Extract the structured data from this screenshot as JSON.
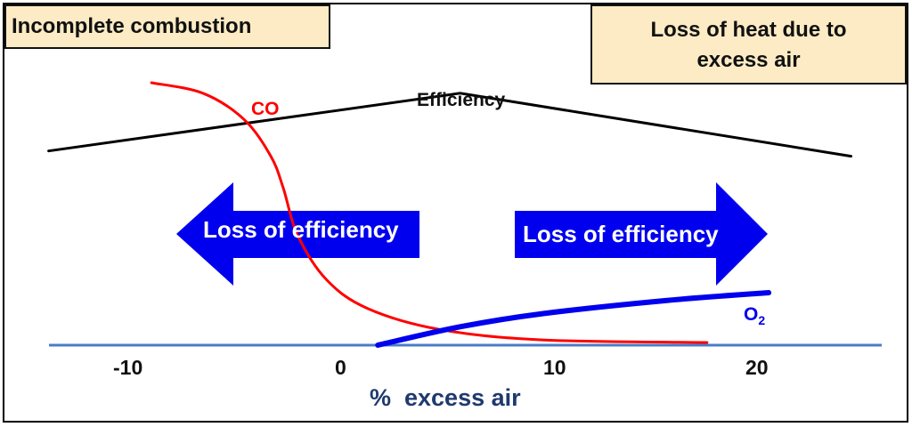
{
  "boxes": {
    "incomplete": "Incomplete combustion",
    "loss_heat_line1": "Loss of heat due to",
    "loss_heat_line2": "excess air"
  },
  "arrows": {
    "left": "Loss of efficiency",
    "right": "Loss of efficiency"
  },
  "colors": {
    "co": "#ff0000",
    "o2": "#0000ee",
    "efficiency": "#000000",
    "baseline": "#4a7cc9",
    "xlabel": "#1f3a6e",
    "arrow_fill": "#0000ee",
    "box_fill": "#fcebc4"
  },
  "chart_data": {
    "type": "line",
    "xlabel": "%  excess air",
    "ylabel": "",
    "x_ticks": [
      -10,
      0,
      10,
      20
    ],
    "xlim": [
      -14.5,
      26
    ],
    "series": [
      {
        "name": "Efficiency",
        "points": [
          [
            -14,
            0.74
          ],
          [
            6,
            0.96
          ],
          [
            25,
            0.72
          ]
        ]
      },
      {
        "name": "CO",
        "points": [
          [
            -9,
            1.0
          ],
          [
            -6.5,
            0.96
          ],
          [
            -4.5,
            0.86
          ],
          [
            -3.2,
            0.72
          ],
          [
            -2.6,
            0.6
          ],
          [
            -1.9,
            0.42
          ],
          [
            -0.5,
            0.25
          ],
          [
            1.5,
            0.14
          ],
          [
            5,
            0.06
          ],
          [
            10,
            0.02
          ],
          [
            18,
            0.01
          ]
        ]
      },
      {
        "name": "O2",
        "points": [
          [
            2,
            0.0
          ],
          [
            6,
            0.07
          ],
          [
            10,
            0.12
          ],
          [
            16,
            0.17
          ],
          [
            21,
            0.2
          ]
        ]
      }
    ]
  }
}
